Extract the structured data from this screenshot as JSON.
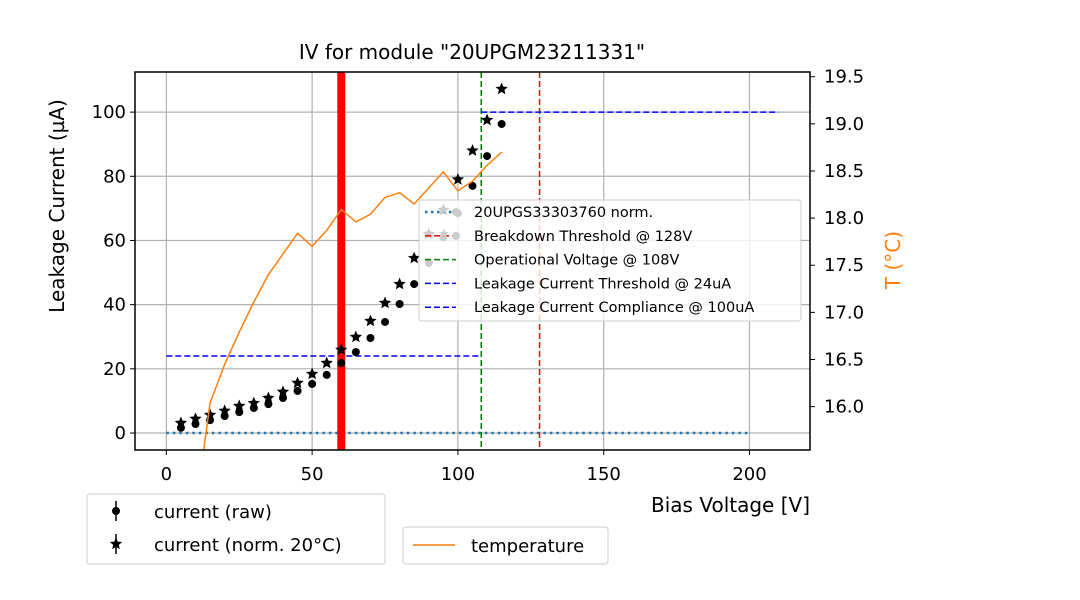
{
  "chart_data": {
    "type": "scatter",
    "title": "IV for module \"20UPGM23211331\"",
    "xlabel": "Bias Voltage [V]",
    "ylabel": "Leakage Current (µA)",
    "y2label": "T (°C)",
    "xlim": [
      -10.75,
      220.75
    ],
    "ylim": [
      -5.3,
      112.5
    ],
    "y2lim": [
      15.54,
      19.55
    ],
    "grid": true,
    "xticks": [
      0,
      50,
      100,
      150,
      200
    ],
    "yticks": [
      0,
      20,
      40,
      60,
      80,
      100
    ],
    "y2ticks": [
      "16.0",
      "16.5",
      "17.0",
      "17.5",
      "18.0",
      "18.5",
      "19.0",
      "19.5"
    ],
    "x": [
      5,
      10,
      15,
      20,
      25,
      30,
      35,
      40,
      45,
      50,
      55,
      60,
      65,
      70,
      75,
      80,
      85,
      90,
      95,
      100,
      105,
      110,
      115
    ],
    "series": [
      {
        "name": "current (raw)",
        "marker": "circle",
        "color": "#000000",
        "values": [
          1.6,
          2.8,
          4.0,
          5.3,
          6.5,
          7.8,
          9.0,
          10.9,
          13.1,
          15.3,
          18.1,
          21.8,
          25.2,
          29.6,
          34.6,
          40.2,
          46.4,
          53.0,
          61.0,
          68.5,
          77.0,
          86.3,
          96.3
        ]
      },
      {
        "name": "current (norm. 20°C)",
        "marker": "star",
        "color": "#000000",
        "values": [
          3.1,
          4.4,
          5.6,
          6.9,
          8.4,
          9.3,
          10.9,
          12.8,
          15.6,
          18.4,
          21.8,
          25.9,
          29.9,
          34.9,
          40.5,
          46.4,
          54.5,
          62.0,
          69.5,
          79.0,
          88.0,
          97.5,
          107.2
        ]
      },
      {
        "name": "temperature",
        "axis": "right",
        "type": "line",
        "color": "#ff7f0e",
        "values": [
          null,
          14.9,
          16.04,
          16.45,
          16.79,
          17.11,
          17.4,
          17.62,
          17.84,
          17.7,
          17.87,
          18.09,
          17.96,
          18.04,
          18.22,
          18.27,
          18.15,
          18.32,
          18.49,
          18.29,
          18.39,
          18.56,
          18.7
        ]
      }
    ],
    "reference_lines": [
      {
        "name": "20UPGS33303760 norm.",
        "kind": "horizontal",
        "y": 0,
        "x_from": 0,
        "x_to": 200,
        "style": "dotted",
        "color": "#1f77b4"
      },
      {
        "name": "Breakdown Threshold @ 128V",
        "kind": "vertical",
        "x": 128,
        "style": "dashed",
        "color": "#ff0000"
      },
      {
        "name": "Operational Voltage @ 108V",
        "kind": "vertical",
        "x": 108,
        "style": "dashed",
        "color": "#008000"
      },
      {
        "name": "Leakage Current Threshold @ 24uA",
        "kind": "horizontal",
        "y": 24,
        "x_from": 0,
        "x_to": 108,
        "style": "dashed",
        "color": "#0000ff"
      },
      {
        "name": "Leakage Current Compliance @ 100uA",
        "kind": "horizontal",
        "y": 100,
        "x_from": 108,
        "x_to": 210,
        "style": "dashed",
        "color": "#0000ff"
      },
      {
        "name": "marker-band",
        "kind": "vertical-band",
        "x": 60,
        "style": "solid",
        "color": "#ff0000"
      }
    ],
    "legend_inner": {
      "placement": "center-right",
      "entries": [
        "20UPGS33303760 norm.",
        "Breakdown Threshold @ 128V",
        "Operational Voltage @ 108V",
        "Leakage Current Threshold @ 24uA",
        "Leakage Current Compliance @ 100uA"
      ]
    },
    "legend_current": {
      "placement": "below-left",
      "entries": [
        "current (raw)",
        "current (norm. 20°C)"
      ]
    },
    "legend_temperature": {
      "placement": "below-center",
      "entries": [
        "temperature"
      ]
    }
  }
}
